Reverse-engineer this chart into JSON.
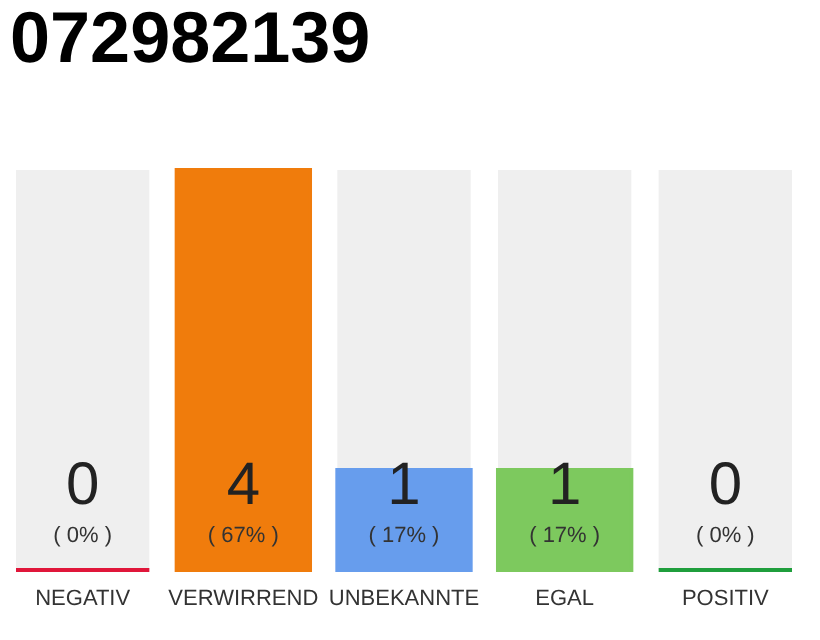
{
  "chart_data": {
    "type": "bar",
    "title": "072982139",
    "categories": [
      "NEGATIV",
      "VERWIRREND",
      "UNBEKANNTE",
      "EGAL",
      "POSITIV"
    ],
    "values": [
      0,
      4,
      1,
      1,
      0
    ],
    "colors": [
      "#e0163a",
      "#f07c0c",
      "#679ded",
      "#7dc95e",
      "#1f9e3c"
    ],
    "ylim": [
      0,
      4
    ],
    "data_labels": true,
    "annotations": [
      "( 0% )",
      "( 67% )",
      "( 17% )",
      "( 17% )",
      "( 0% )"
    ],
    "grid": false
  }
}
